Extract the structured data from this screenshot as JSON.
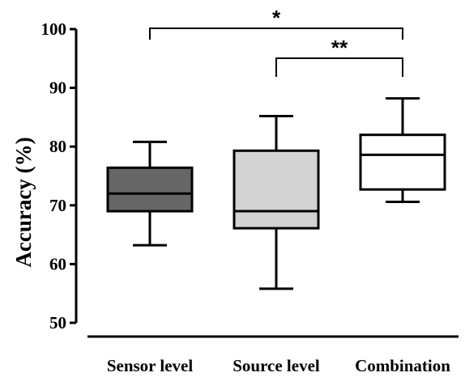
{
  "chart_data": {
    "type": "box",
    "title": "",
    "xlabel": "",
    "ylabel": "Accuracy (%)",
    "ylim": [
      50,
      100
    ],
    "yticks": [
      50,
      60,
      70,
      80,
      90,
      100
    ],
    "ytick_labels": [
      "50",
      "60",
      "70",
      "80",
      "90",
      "100"
    ],
    "grid": false,
    "legend": "none",
    "categories": [
      "Sensor level",
      "Source level",
      "Combination"
    ],
    "boxes": [
      {
        "category": "Sensor level",
        "min": 63.2,
        "q1": 69.0,
        "median": 72.0,
        "q3": 76.4,
        "max": 80.8,
        "fill": "#666666"
      },
      {
        "category": "Source level",
        "min": 55.8,
        "q1": 66.1,
        "median": 69.0,
        "q3": 79.3,
        "max": 85.2,
        "fill": "#d3d3d3"
      },
      {
        "category": "Combination",
        "min": 70.6,
        "q1": 72.7,
        "median": 78.6,
        "q3": 82.0,
        "max": 88.2,
        "fill": "#ffffff"
      }
    ],
    "significance": [
      {
        "from": 0,
        "to": 2,
        "label": "*"
      },
      {
        "from": 1,
        "to": 2,
        "label": "**"
      }
    ]
  }
}
